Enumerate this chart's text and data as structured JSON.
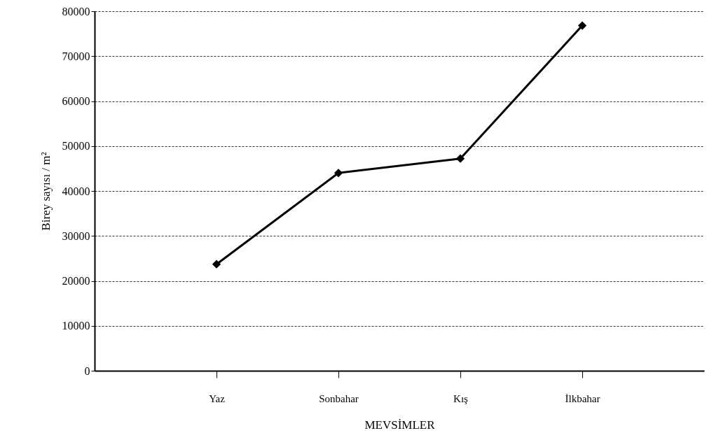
{
  "chart_data": {
    "type": "line",
    "xlabel": "MEVSİMLER",
    "ylabel": "Birey sayısı / m²",
    "categories": [
      "Yaz",
      "Sonbahar",
      "Kış",
      "İlkbahar"
    ],
    "series": [
      {
        "color": "#000000",
        "values": [
          23700,
          44000,
          47200,
          76800
        ]
      }
    ],
    "ylim": [
      0,
      80000
    ],
    "yticks": [
      0,
      10000,
      20000,
      30000,
      40000,
      50000,
      60000,
      70000,
      80000
    ],
    "grid": "y",
    "marker": "diamond",
    "line_style": "solid"
  }
}
